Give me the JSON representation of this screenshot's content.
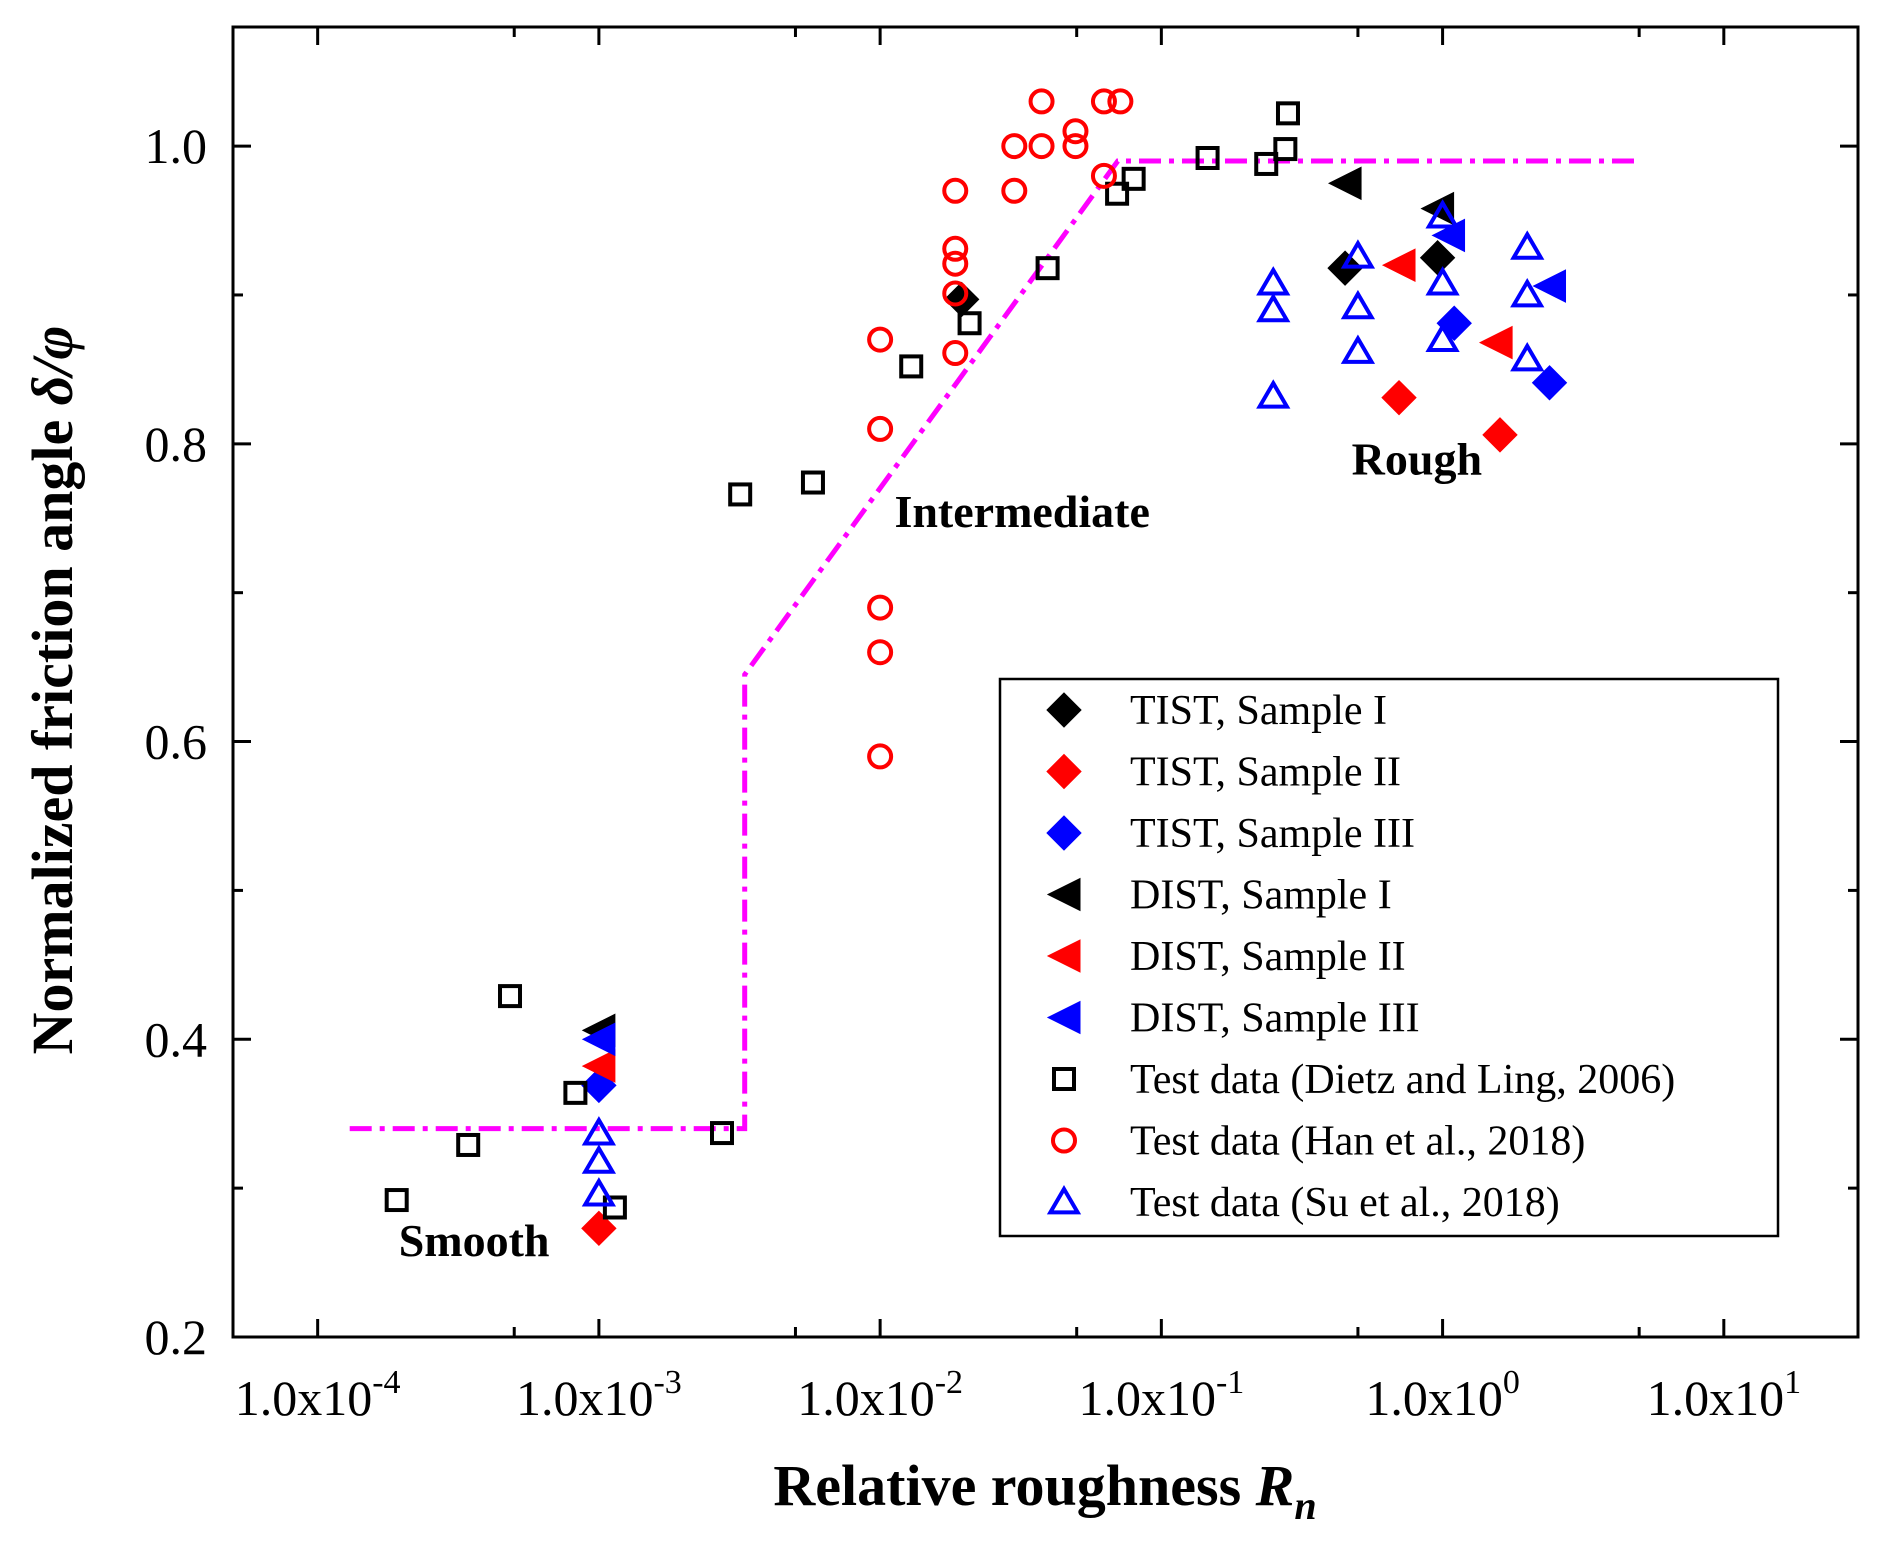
{
  "chart_data": {
    "type": "scatter",
    "xscale": "log",
    "xlim": [
      5e-05,
      30
    ],
    "ylim": [
      0.2,
      1.08
    ],
    "xlabel": "Relative roughness ",
    "xlabel_italic": "R",
    "xlabel_sub": "n",
    "ylabel": "Normalized friction angle ",
    "ylabel_italic": "δ/φ",
    "xticks": [
      {
        "value": 0.0001,
        "mantissa": "1.0x10",
        "exp": "-4"
      },
      {
        "value": 0.001,
        "mantissa": "1.0x10",
        "exp": "-3"
      },
      {
        "value": 0.01,
        "mantissa": "1.0x10",
        "exp": "-2"
      },
      {
        "value": 0.1,
        "mantissa": "1.0x10",
        "exp": "-1"
      },
      {
        "value": 1,
        "mantissa": "1.0x10",
        "exp": "0"
      },
      {
        "value": 10,
        "mantissa": "1.0x10",
        "exp": "1"
      }
    ],
    "yticks": [
      {
        "value": 0.2,
        "label": "0.2"
      },
      {
        "value": 0.4,
        "label": "0.4"
      },
      {
        "value": 0.6,
        "label": "0.6"
      },
      {
        "value": 0.8,
        "label": "0.8"
      },
      {
        "value": 1.0,
        "label": "1.0"
      }
    ],
    "yminor": [
      0.3,
      0.5,
      0.7,
      0.9
    ],
    "annotations": [
      {
        "text": "Smooth",
        "x": 0.00036,
        "y": 0.265
      },
      {
        "text": "Intermediate",
        "x": 0.032,
        "y": 0.755
      },
      {
        "text": "Rough",
        "x": 0.81,
        "y": 0.79
      }
    ],
    "trend_line": {
      "color": "#ff00ff",
      "points": [
        [
          0.00013,
          0.34
        ],
        [
          0.0033,
          0.34
        ],
        [
          0.0033,
          0.645
        ],
        [
          0.07,
          0.99
        ],
        [
          5.0,
          0.99
        ]
      ]
    },
    "series": [
      {
        "name": "TIST, Sample I",
        "marker": "diamond",
        "filled": true,
        "color": "#000000",
        "points": [
          [
            0.0195,
            0.897
          ],
          [
            0.45,
            0.918
          ],
          [
            0.96,
            0.925
          ]
        ]
      },
      {
        "name": "TIST, Sample II",
        "marker": "diamond",
        "filled": true,
        "color": "#ff0000",
        "points": [
          [
            0.001,
            0.273
          ],
          [
            0.7,
            0.831
          ],
          [
            1.6,
            0.806
          ]
        ]
      },
      {
        "name": "TIST, Sample III",
        "marker": "diamond",
        "filled": true,
        "color": "#0000ff",
        "points": [
          [
            0.001,
            0.369
          ],
          [
            1.1,
            0.881
          ],
          [
            2.4,
            0.841
          ]
        ]
      },
      {
        "name": "DIST, Sample I",
        "marker": "triangle-left",
        "filled": true,
        "color": "#000000",
        "points": [
          [
            0.001,
            0.406
          ],
          [
            0.45,
            0.975
          ],
          [
            0.96,
            0.958
          ]
        ]
      },
      {
        "name": "DIST, Sample II",
        "marker": "triangle-left",
        "filled": true,
        "color": "#ff0000",
        "points": [
          [
            0.001,
            0.382
          ],
          [
            0.7,
            0.92
          ],
          [
            1.55,
            0.868
          ]
        ]
      },
      {
        "name": "DIST, Sample III",
        "marker": "triangle-left",
        "filled": true,
        "color": "#0000ff",
        "points": [
          [
            0.001,
            0.4
          ],
          [
            1.05,
            0.94
          ],
          [
            2.4,
            0.906
          ]
        ]
      },
      {
        "name": "Test data (Dietz and Ling, 2006)",
        "marker": "square",
        "filled": false,
        "color": "#000000",
        "points": [
          [
            0.000191,
            0.292
          ],
          [
            0.000343,
            0.329
          ],
          [
            0.000483,
            0.429
          ],
          [
            0.000825,
            0.364
          ],
          [
            0.00114,
            0.287
          ],
          [
            0.00274,
            0.337
          ],
          [
            0.00318,
            0.766
          ],
          [
            0.00577,
            0.774
          ],
          [
            0.0129,
            0.852
          ],
          [
            0.0208,
            0.881
          ],
          [
            0.0394,
            0.918
          ],
          [
            0.0696,
            0.968
          ],
          [
            0.0797,
            0.978
          ],
          [
            0.146,
            0.992
          ],
          [
            0.236,
            0.988
          ],
          [
            0.276,
            0.998
          ],
          [
            0.282,
            1.022
          ]
        ]
      },
      {
        "name": "Test data (Han et al., 2018)",
        "marker": "circle",
        "filled": false,
        "color": "#ff0000",
        "points": [
          [
            0.01,
            0.59
          ],
          [
            0.01,
            0.66
          ],
          [
            0.01,
            0.69
          ],
          [
            0.01,
            0.81
          ],
          [
            0.01,
            0.87
          ],
          [
            0.0185,
            0.861
          ],
          [
            0.0185,
            0.901
          ],
          [
            0.0185,
            0.921
          ],
          [
            0.0185,
            0.931
          ],
          [
            0.0185,
            0.97
          ],
          [
            0.03,
            0.97
          ],
          [
            0.03,
            1.0
          ],
          [
            0.0375,
            1.0
          ],
          [
            0.0375,
            1.03
          ],
          [
            0.0495,
            1.0
          ],
          [
            0.0495,
            1.01
          ],
          [
            0.0625,
            0.98
          ],
          [
            0.0625,
            1.03
          ],
          [
            0.0715,
            1.03
          ]
        ]
      },
      {
        "name": "Test data (Su et al., 2018)",
        "marker": "triangle-up",
        "filled": false,
        "color": "#0000ff",
        "points": [
          [
            0.001,
            0.296
          ],
          [
            0.001,
            0.318
          ],
          [
            0.001,
            0.337
          ],
          [
            0.25,
            0.832
          ],
          [
            0.25,
            0.89
          ],
          [
            0.25,
            0.908
          ],
          [
            0.5,
            0.862
          ],
          [
            0.5,
            0.892
          ],
          [
            0.5,
            0.926
          ],
          [
            1.0,
            0.87
          ],
          [
            1.0,
            0.908
          ],
          [
            1.0,
            0.953
          ],
          [
            2.0,
            0.857
          ],
          [
            2.0,
            0.9
          ],
          [
            2.0,
            0.932
          ]
        ]
      }
    ]
  }
}
